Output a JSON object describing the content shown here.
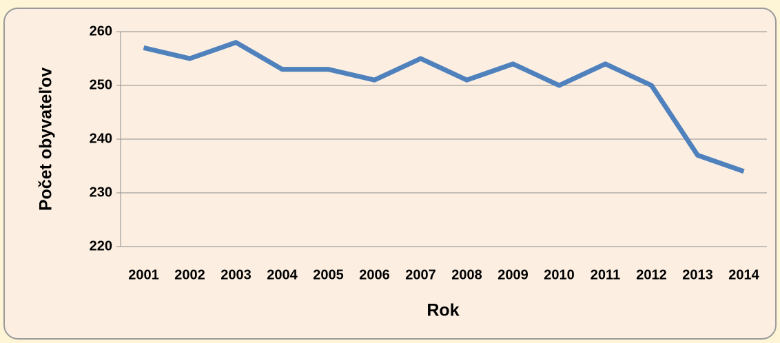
{
  "chart_data": {
    "type": "line",
    "categories": [
      "2001",
      "2002",
      "2003",
      "2004",
      "2005",
      "2006",
      "2007",
      "2008",
      "2009",
      "2010",
      "2011",
      "2012",
      "2013",
      "2014"
    ],
    "series": [
      {
        "name": null,
        "color": "#4f81bd",
        "values": [
          257,
          255,
          258,
          253,
          253,
          251,
          255,
          251,
          254,
          250,
          254,
          250,
          237,
          234
        ]
      }
    ],
    "ylim": [
      220,
      260
    ],
    "yticks": [
      220,
      230,
      240,
      250,
      260
    ],
    "grid": true,
    "ylabel": "Počet obyvateľov",
    "xlabel": "Rok"
  }
}
